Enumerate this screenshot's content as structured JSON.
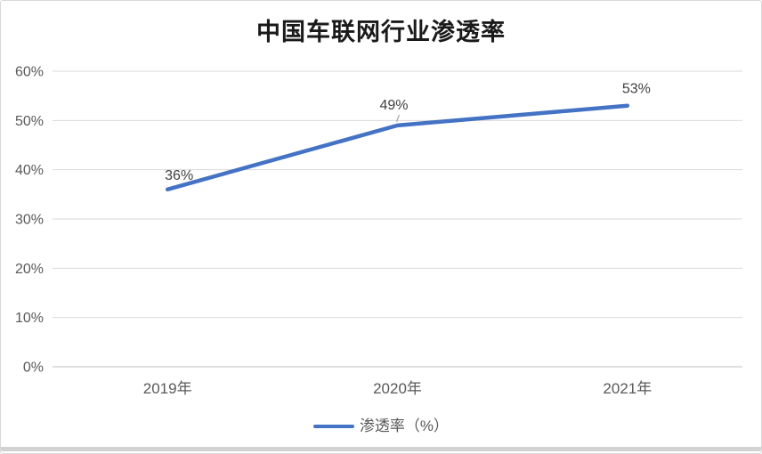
{
  "window": {
    "background": "#ffffff",
    "border_color": "#d9d9d9",
    "bottom_shadow_color": "#d2d2d2"
  },
  "chart_data": {
    "type": "line",
    "title": "中国车联网行业渗透率",
    "categories": [
      "2019年",
      "2020年",
      "2021年"
    ],
    "series": [
      {
        "name": "渗透率（%）",
        "values": [
          36,
          49,
          53
        ],
        "color": "#4472C4"
      }
    ],
    "data_labels": [
      "36%",
      "49%",
      "53%"
    ],
    "y_ticks": [
      {
        "value": 0,
        "label": "0%"
      },
      {
        "value": 10,
        "label": "10%"
      },
      {
        "value": 20,
        "label": "20%"
      },
      {
        "value": 30,
        "label": "30%"
      },
      {
        "value": 40,
        "label": "40%"
      },
      {
        "value": 50,
        "label": "50%"
      },
      {
        "value": 60,
        "label": "60%"
      }
    ],
    "ylim": [
      0,
      60
    ],
    "xlabel": "",
    "ylabel": "",
    "grid": true,
    "legend_position": "bottom",
    "colors": {
      "gridline": "#d9d9d9",
      "axis_line": "#bfbfbf",
      "tick_label": "#595959",
      "data_label": "#404040",
      "leader_line": "#a6a6a6",
      "title": "#1a1a1a"
    }
  }
}
